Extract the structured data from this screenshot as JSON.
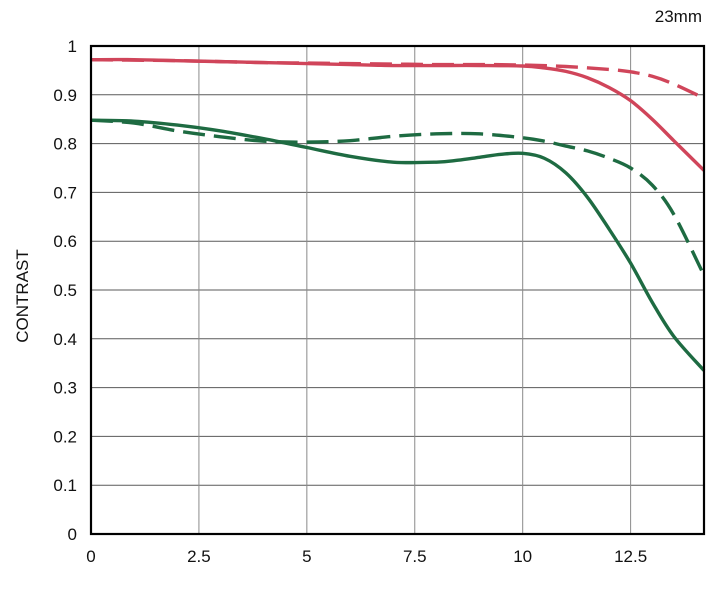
{
  "chart_data": {
    "type": "line",
    "title": "23mm",
    "xlabel": "",
    "ylabel": "CONTRAST",
    "xlim": [
      0,
      14.2
    ],
    "ylim": [
      0,
      1
    ],
    "x_ticks": [
      "0",
      "2.5",
      "5",
      "7.5",
      "10",
      "12.5"
    ],
    "y_ticks": [
      "0",
      "0.1",
      "0.2",
      "0.3",
      "0.4",
      "0.5",
      "0.6",
      "0.7",
      "0.8",
      "0.9",
      "1"
    ],
    "grid": true,
    "legend": "none",
    "series": [
      {
        "color": "#d0455a",
        "style": "solid",
        "x": [
          0,
          1,
          2,
          3,
          4,
          5,
          6,
          7,
          8,
          9,
          10,
          10.5,
          11,
          11.5,
          12,
          12.5,
          13,
          13.5,
          14.2
        ],
        "y": [
          0.972,
          0.972,
          0.97,
          0.968,
          0.966,
          0.964,
          0.962,
          0.96,
          0.96,
          0.96,
          0.959,
          0.955,
          0.948,
          0.935,
          0.915,
          0.888,
          0.85,
          0.806,
          0.745
        ]
      },
      {
        "color": "#d0455a",
        "style": "dashed",
        "x": [
          0,
          1,
          2,
          3,
          4,
          5,
          6,
          7,
          8,
          9,
          10,
          11,
          12,
          12.5,
          13,
          13.5,
          14.2
        ],
        "y": [
          0.972,
          0.971,
          0.97,
          0.968,
          0.966,
          0.965,
          0.964,
          0.963,
          0.962,
          0.962,
          0.961,
          0.958,
          0.952,
          0.947,
          0.938,
          0.922,
          0.893
        ]
      },
      {
        "color": "#1e6b42",
        "style": "solid",
        "x": [
          0,
          1,
          2,
          3,
          4,
          5,
          6,
          7,
          8,
          8.5,
          9,
          9.5,
          10,
          10.5,
          11,
          11.5,
          12,
          12.5,
          13,
          13.5,
          14.2
        ],
        "y": [
          0.848,
          0.846,
          0.838,
          0.826,
          0.81,
          0.792,
          0.774,
          0.762,
          0.762,
          0.766,
          0.772,
          0.778,
          0.78,
          0.77,
          0.74,
          0.69,
          0.625,
          0.555,
          0.475,
          0.405,
          0.335
        ]
      },
      {
        "color": "#1e6b42",
        "style": "dashed",
        "x": [
          0,
          1,
          2,
          3,
          4,
          5,
          6,
          7,
          8,
          9,
          10,
          10.5,
          11,
          11.5,
          12,
          12.5,
          13,
          13.5,
          14.2
        ],
        "y": [
          0.848,
          0.842,
          0.826,
          0.814,
          0.805,
          0.803,
          0.806,
          0.815,
          0.82,
          0.82,
          0.812,
          0.805,
          0.795,
          0.785,
          0.77,
          0.75,
          0.715,
          0.655,
          0.53
        ]
      }
    ]
  }
}
